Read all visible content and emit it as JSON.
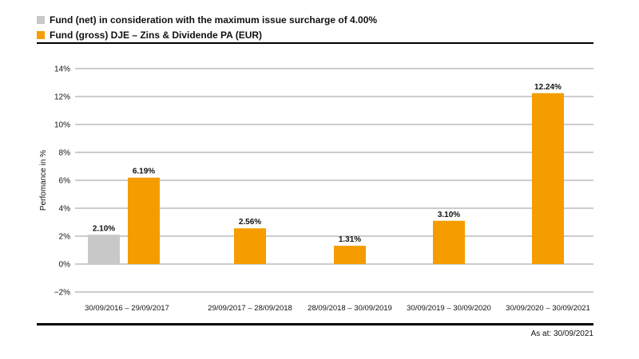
{
  "legend": {
    "net_label": "Fund (net) in consideration with the maximum issue surcharge of 4.00%",
    "gross_label": "Fund (gross) DJE – Zins & Dividende PA (EUR)"
  },
  "footer": {
    "as_at": "As at: 30/09/2021"
  },
  "colors": {
    "net": "#c8c8c8",
    "gross": "#f59c00",
    "grid": "#9a9a9a"
  },
  "chart_data": {
    "type": "bar",
    "ylabel": "Perfomance in %",
    "ylim": [
      -2,
      14
    ],
    "yticks": [
      -2,
      0,
      2,
      4,
      6,
      8,
      10,
      12,
      14
    ],
    "ytick_labels": [
      "−2%",
      "0%",
      "2%",
      "4%",
      "6%",
      "8%",
      "10%",
      "12%",
      "14%"
    ],
    "grid": true,
    "legend_position": "top-left",
    "categories": [
      "30/09/2016 – 29/09/2017",
      "29/09/2017 – 28/09/2018",
      "28/09/2018 – 30/09/2019",
      "30/09/2019 – 30/09/2020",
      "30/09/2020 – 30/09/2021"
    ],
    "series": [
      {
        "name": "Fund (net) in consideration with the maximum issue surcharge of 4.00%",
        "values": [
          2.1,
          null,
          null,
          null,
          null
        ],
        "labels": [
          "2.10%",
          null,
          null,
          null,
          null
        ]
      },
      {
        "name": "Fund (gross) DJE – Zins & Dividende PA (EUR)",
        "values": [
          6.19,
          2.56,
          1.31,
          3.1,
          12.24
        ],
        "labels": [
          "6.19%",
          "2.56%",
          "1.31%",
          "3.10%",
          "12.24%"
        ]
      }
    ]
  }
}
